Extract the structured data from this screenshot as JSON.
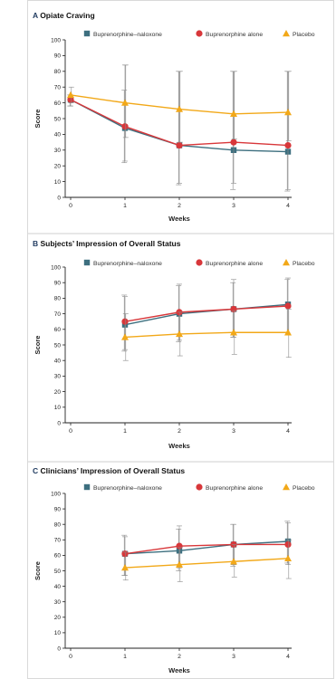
{
  "panels": [
    {
      "letter": "A",
      "title": "Opiate Craving"
    },
    {
      "letter": "B",
      "title": "Subjects’ Impression of Overall Status"
    },
    {
      "letter": "C",
      "title": "Clinicians’ Impression of Overall Status"
    }
  ],
  "colors": {
    "bup_nal": "#3d6f7f",
    "bup_alone": "#d8373a",
    "placebo": "#f2a818",
    "axis": "#222222"
  },
  "chart_data": [
    {
      "type": "line",
      "title": "Opiate Craving",
      "xlabel": "Weeks",
      "ylabel": "Score",
      "ylim": [
        0,
        100
      ],
      "y_ticks": [
        0,
        10,
        20,
        30,
        40,
        50,
        60,
        70,
        80,
        90,
        100
      ],
      "x_ticks": [
        0,
        1,
        2,
        3,
        4
      ],
      "legend": "top",
      "grid": false,
      "series": [
        {
          "name": "Buprenorphine–naloxone",
          "marker": "square",
          "x": [
            0,
            1,
            2,
            3,
            4
          ],
          "values": [
            62,
            44,
            33,
            30,
            29
          ],
          "err_low": [
            58,
            22,
            8,
            5,
            4
          ],
          "err_high": [
            65,
            68,
            80,
            80,
            80
          ]
        },
        {
          "name": "Buprenorphine alone",
          "marker": "circle",
          "x": [
            0,
            1,
            2,
            3,
            4
          ],
          "values": [
            62,
            45,
            33,
            35,
            33
          ],
          "err_low": [
            58,
            23,
            9,
            9,
            5
          ],
          "err_high": [
            65,
            84,
            80,
            80,
            80
          ]
        },
        {
          "name": "Placebo",
          "marker": "triangle",
          "x": [
            0,
            1,
            2,
            3,
            4
          ],
          "values": [
            65,
            60,
            56,
            53,
            54
          ],
          "err_low": [
            60,
            38,
            35,
            37,
            36
          ],
          "err_high": [
            70,
            84,
            80,
            80,
            80
          ]
        }
      ]
    },
    {
      "type": "line",
      "title": "Subjects’ Impression of Overall Status",
      "xlabel": "Weeks",
      "ylabel": "Score",
      "ylim": [
        0,
        100
      ],
      "y_ticks": [
        0,
        10,
        20,
        30,
        40,
        50,
        60,
        70,
        80,
        90,
        100
      ],
      "x_ticks": [
        0,
        1,
        2,
        3,
        4
      ],
      "legend": "top",
      "grid": false,
      "series": [
        {
          "name": "Buprenorphine–naloxone",
          "marker": "square",
          "x": [
            1,
            2,
            3,
            4
          ],
          "values": [
            63,
            70,
            73,
            76
          ],
          "err_low": [
            46,
            52,
            55,
            58
          ],
          "err_high": [
            82,
            88,
            90,
            92
          ]
        },
        {
          "name": "Buprenorphine alone",
          "marker": "circle",
          "x": [
            1,
            2,
            3,
            4
          ],
          "values": [
            65,
            71,
            73,
            75
          ],
          "err_low": [
            47,
            53,
            55,
            57
          ],
          "err_high": [
            81,
            89,
            92,
            93
          ]
        },
        {
          "name": "Placebo",
          "marker": "triangle",
          "x": [
            1,
            2,
            3,
            4
          ],
          "values": [
            55,
            57,
            58,
            58
          ],
          "err_low": [
            40,
            43,
            44,
            42
          ],
          "err_high": [
            70,
            71,
            72,
            73
          ]
        }
      ]
    },
    {
      "type": "line",
      "title": "Clinicians’ Impression of Overall Status",
      "xlabel": "Weeks",
      "ylabel": "Score",
      "ylim": [
        0,
        100
      ],
      "y_ticks": [
        0,
        10,
        20,
        30,
        40,
        50,
        60,
        70,
        80,
        90,
        100
      ],
      "x_ticks": [
        0,
        1,
        2,
        3,
        4
      ],
      "legend": "top",
      "grid": false,
      "series": [
        {
          "name": "Buprenorphine–naloxone",
          "marker": "square",
          "x": [
            1,
            2,
            3,
            4
          ],
          "values": [
            61,
            63,
            67,
            69
          ],
          "err_low": [
            47,
            50,
            53,
            55
          ],
          "err_high": [
            73,
            77,
            80,
            82
          ]
        },
        {
          "name": "Buprenorphine alone",
          "marker": "circle",
          "x": [
            1,
            2,
            3,
            4
          ],
          "values": [
            61,
            66,
            67,
            67
          ],
          "err_low": [
            47,
            52,
            54,
            54
          ],
          "err_high": [
            72,
            79,
            80,
            81
          ]
        },
        {
          "name": "Placebo",
          "marker": "triangle",
          "x": [
            1,
            2,
            3,
            4
          ],
          "values": [
            52,
            54,
            56,
            58
          ],
          "err_low": [
            44,
            43,
            46,
            45
          ],
          "err_high": [
            62,
            65,
            67,
            70
          ]
        }
      ]
    }
  ]
}
